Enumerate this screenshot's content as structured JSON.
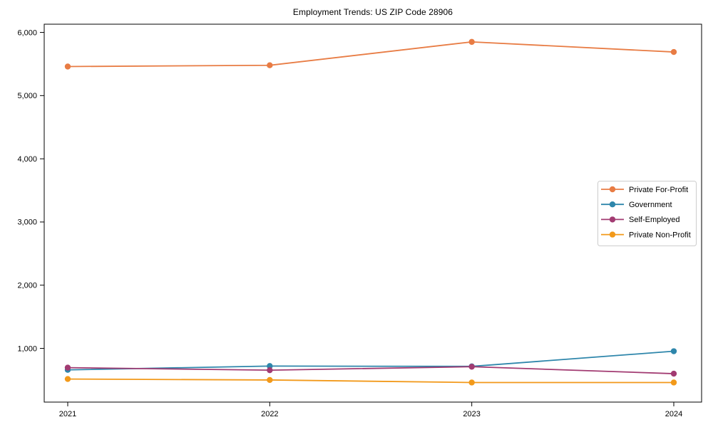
{
  "page": {
    "background": "#ffffff"
  },
  "chart_data": {
    "type": "line",
    "title": "Employment Trends: US ZIP Code 28906",
    "x": [
      2021,
      2022,
      2023,
      2024
    ],
    "x_tick_labels": [
      "2021",
      "2022",
      "2023",
      "2024"
    ],
    "series": [
      {
        "name": "Private For-Profit",
        "color": "#E87C44",
        "values": [
          5460,
          5480,
          5850,
          5690
        ]
      },
      {
        "name": "Government",
        "color": "#2E86AB",
        "values": [
          660,
          720,
          715,
          955
        ]
      },
      {
        "name": "Self-Employed",
        "color": "#A23B72",
        "values": [
          695,
          655,
          710,
          600
        ]
      },
      {
        "name": "Private Non-Profit",
        "color": "#F2991A",
        "values": [
          515,
          500,
          460,
          460
        ]
      }
    ],
    "xlabel": "",
    "ylabel": "",
    "ylim": [
      150,
      6130
    ],
    "yticks": [
      1000,
      2000,
      3000,
      4000,
      5000,
      6000
    ],
    "ytick_labels": [
      "1,000",
      "2,000",
      "3,000",
      "4,000",
      "5,000",
      "6,000"
    ],
    "grid": false,
    "legend": {
      "position": "right-middle",
      "border_color": "#cccccc",
      "background": "#ffffff"
    },
    "marker": "circle",
    "axis_color": "#000000"
  }
}
